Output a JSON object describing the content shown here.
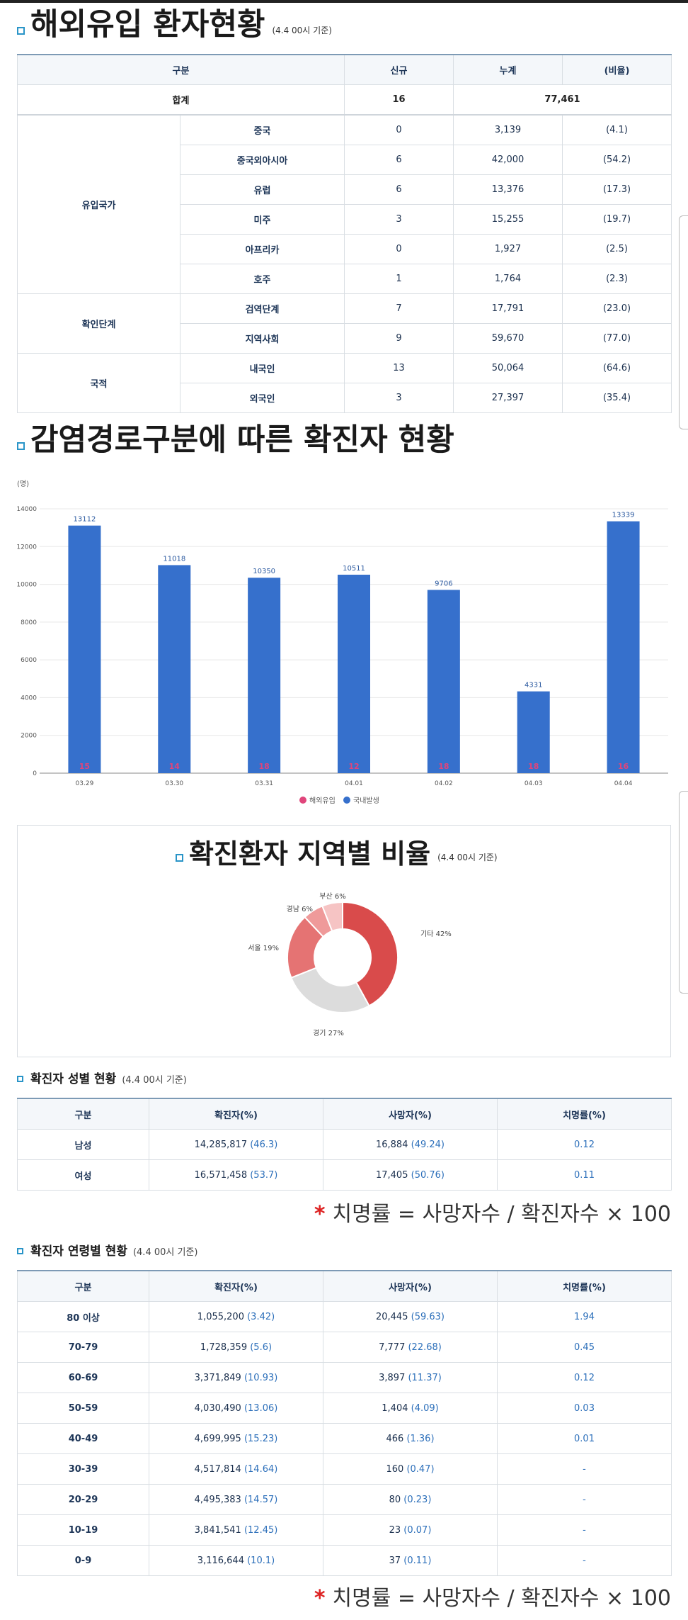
{
  "sections": {
    "overseas": {
      "title": "해외유입 환자현황",
      "note": "(4.4 00시 기준)"
    },
    "route": {
      "title": "감염경로구분에 따른 확진자 현황"
    },
    "region": {
      "title": "확진환자 지역별 비율",
      "note": "(4.4 00시 기준)"
    },
    "gender": {
      "title": "확진자 성별 현황",
      "note": "(4.4 00시 기준)"
    },
    "age": {
      "title": "확진자 연령별 현황",
      "note": "(4.4 00시 기준)"
    }
  },
  "overseas_table": {
    "headers": [
      "구분",
      "신규",
      "누계",
      "(비율)"
    ],
    "total": {
      "label": "합계",
      "new": "16",
      "cum": "77,461"
    },
    "groups": [
      {
        "name": "유입국가",
        "rows": [
          {
            "label": "중국",
            "new": "0",
            "cum": "3,139",
            "pct": "(4.1)"
          },
          {
            "label": "중국외아시아",
            "new": "6",
            "cum": "42,000",
            "pct": "(54.2)"
          },
          {
            "label": "유럽",
            "new": "6",
            "cum": "13,376",
            "pct": "(17.3)"
          },
          {
            "label": "미주",
            "new": "3",
            "cum": "15,255",
            "pct": "(19.7)"
          },
          {
            "label": "아프리카",
            "new": "0",
            "cum": "1,927",
            "pct": "(2.5)"
          },
          {
            "label": "호주",
            "new": "1",
            "cum": "1,764",
            "pct": "(2.3)"
          }
        ]
      },
      {
        "name": "확인단계",
        "rows": [
          {
            "label": "검역단계",
            "new": "7",
            "cum": "17,791",
            "pct": "(23.0)"
          },
          {
            "label": "지역사회",
            "new": "9",
            "cum": "59,670",
            "pct": "(77.0)"
          }
        ]
      },
      {
        "name": "국적",
        "rows": [
          {
            "label": "내국인",
            "new": "13",
            "cum": "50,064",
            "pct": "(64.6)"
          },
          {
            "label": "외국인",
            "new": "3",
            "cum": "27,397",
            "pct": "(35.4)"
          }
        ]
      }
    ]
  },
  "chart_data": [
    {
      "type": "bar",
      "ylabel": "(명)",
      "ylim": [
        0,
        14000
      ],
      "yticks": [
        0,
        2000,
        4000,
        6000,
        8000,
        10000,
        12000,
        14000
      ],
      "categories": [
        "03.29",
        "03.30",
        "03.31",
        "04.01",
        "04.02",
        "04.03",
        "04.04"
      ],
      "series": [
        {
          "name": "해외유입",
          "color": "#e0457b",
          "values": [
            15,
            14,
            18,
            12,
            18,
            18,
            16
          ]
        },
        {
          "name": "국내발생",
          "color": "#3670cc",
          "values": [
            13112,
            11018,
            10350,
            10511,
            9706,
            4331,
            13339
          ]
        }
      ],
      "legend": "bottom",
      "grid": true
    },
    {
      "type": "pie",
      "labels": [
        "기타",
        "경기",
        "서울",
        "경남",
        "부산"
      ],
      "values": [
        42,
        27,
        19,
        6,
        6
      ],
      "display": [
        "기타 42%",
        "경기 27%",
        "서울 19%",
        "경남 6%",
        "부산 6%"
      ],
      "colors": [
        "#d94b4b",
        "#dcdcdc",
        "#e57373",
        "#ef9a9a",
        "#f6c4c4"
      ]
    }
  ],
  "stats_headers": [
    "구분",
    "확진자(%)",
    "사망자(%)",
    "치명률(%)"
  ],
  "gender_table": [
    {
      "label": "남성",
      "cases": "14,285,817",
      "cases_pct": "(46.3)",
      "deaths": "16,884",
      "deaths_pct": "(49.24)",
      "rate": "0.12"
    },
    {
      "label": "여성",
      "cases": "16,571,458",
      "cases_pct": "(53.7)",
      "deaths": "17,405",
      "deaths_pct": "(50.76)",
      "rate": "0.11"
    }
  ],
  "age_table": [
    {
      "label": "80 이상",
      "cases": "1,055,200",
      "cases_pct": "(3.42)",
      "deaths": "20,445",
      "deaths_pct": "(59.63)",
      "rate": "1.94"
    },
    {
      "label": "70-79",
      "cases": "1,728,359",
      "cases_pct": "(5.6)",
      "deaths": "7,777",
      "deaths_pct": "(22.68)",
      "rate": "0.45"
    },
    {
      "label": "60-69",
      "cases": "3,371,849",
      "cases_pct": "(10.93)",
      "deaths": "3,897",
      "deaths_pct": "(11.37)",
      "rate": "0.12"
    },
    {
      "label": "50-59",
      "cases": "4,030,490",
      "cases_pct": "(13.06)",
      "deaths": "1,404",
      "deaths_pct": "(4.09)",
      "rate": "0.03"
    },
    {
      "label": "40-49",
      "cases": "4,699,995",
      "cases_pct": "(15.23)",
      "deaths": "466",
      "deaths_pct": "(1.36)",
      "rate": "0.01"
    },
    {
      "label": "30-39",
      "cases": "4,517,814",
      "cases_pct": "(14.64)",
      "deaths": "160",
      "deaths_pct": "(0.47)",
      "rate": "-"
    },
    {
      "label": "20-29",
      "cases": "4,495,383",
      "cases_pct": "(14.57)",
      "deaths": "80",
      "deaths_pct": "(0.23)",
      "rate": "-"
    },
    {
      "label": "10-19",
      "cases": "3,841,541",
      "cases_pct": "(12.45)",
      "deaths": "23",
      "deaths_pct": "(0.07)",
      "rate": "-"
    },
    {
      "label": "0-9",
      "cases": "3,116,644",
      "cases_pct": "(10.1)",
      "deaths": "37",
      "deaths_pct": "(0.11)",
      "rate": "-"
    }
  ],
  "formula": {
    "star": "*",
    "text": "치명률 = 사망자수 / 확진자수 × 100"
  }
}
